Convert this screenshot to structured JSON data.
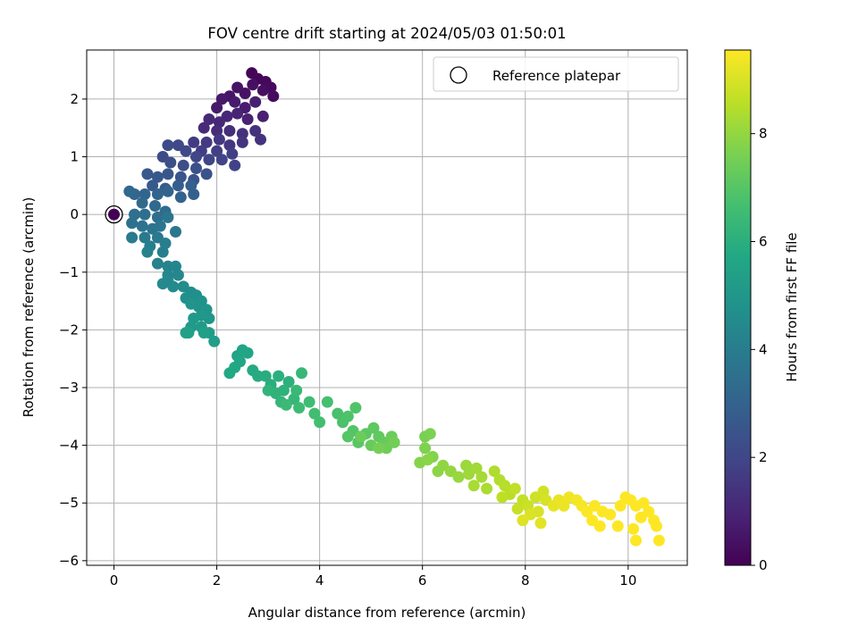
{
  "chart_data": {
    "type": "scatter",
    "title": "FOV centre drift starting at 2024/05/03 01:50:01",
    "xlabel": "Angular distance from reference (arcmin)",
    "ylabel": "Rotation from reference (arcmin)",
    "xlim": [
      -0.53,
      11.15
    ],
    "ylim": [
      -6.08,
      2.85
    ],
    "xticks": [
      0,
      2,
      4,
      6,
      8,
      10
    ],
    "yticks": [
      -6,
      -5,
      -4,
      -3,
      -2,
      -1,
      0,
      1,
      2
    ],
    "grid": true,
    "legend": {
      "placement": "top-right",
      "entries": [
        "Reference platepar"
      ]
    },
    "reference_point": {
      "x": 0,
      "y": 0
    },
    "colorbar": {
      "label": "Hours from first FF file",
      "range": [
        0,
        9.55
      ],
      "ticks": [
        0,
        2,
        4,
        6,
        8
      ],
      "colormap": "viridis"
    },
    "series": [
      {
        "values_note_fields": [
          "x",
          "y",
          "hours"
        ],
        "points": [
          [
            0.0,
            0.0,
            0.0
          ],
          [
            2.68,
            2.45,
            0.1
          ],
          [
            2.8,
            2.35,
            0.15
          ],
          [
            2.95,
            2.3,
            0.2
          ],
          [
            3.05,
            2.2,
            0.25
          ],
          [
            3.1,
            2.05,
            0.3
          ],
          [
            2.9,
            2.15,
            0.35
          ],
          [
            2.7,
            2.25,
            0.4
          ],
          [
            2.55,
            2.1,
            0.45
          ],
          [
            2.4,
            2.2,
            0.5
          ],
          [
            2.25,
            2.05,
            0.55
          ],
          [
            2.1,
            2.0,
            0.6
          ],
          [
            2.0,
            1.85,
            0.65
          ],
          [
            2.35,
            1.95,
            0.7
          ],
          [
            2.55,
            1.85,
            0.75
          ],
          [
            2.75,
            1.95,
            0.8
          ],
          [
            2.9,
            1.7,
            0.85
          ],
          [
            2.6,
            1.65,
            0.9
          ],
          [
            2.4,
            1.75,
            0.95
          ],
          [
            2.2,
            1.7,
            1.0
          ],
          [
            2.05,
            1.6,
            1.05
          ],
          [
            1.85,
            1.65,
            1.1
          ],
          [
            1.75,
            1.5,
            1.15
          ],
          [
            2.0,
            1.45,
            1.2
          ],
          [
            2.25,
            1.45,
            1.25
          ],
          [
            2.5,
            1.4,
            1.3
          ],
          [
            2.75,
            1.45,
            1.35
          ],
          [
            2.85,
            1.3,
            1.4
          ],
          [
            2.5,
            1.25,
            1.45
          ],
          [
            2.25,
            1.2,
            1.5
          ],
          [
            2.05,
            1.3,
            1.55
          ],
          [
            1.8,
            1.25,
            1.6
          ],
          [
            1.55,
            1.25,
            1.65
          ],
          [
            1.7,
            1.1,
            1.7
          ],
          [
            2.0,
            1.1,
            1.75
          ],
          [
            2.3,
            1.05,
            1.8
          ],
          [
            2.35,
            0.85,
            1.85
          ],
          [
            2.1,
            0.95,
            1.9
          ],
          [
            1.85,
            0.95,
            1.95
          ],
          [
            1.6,
            1.0,
            2.0
          ],
          [
            1.4,
            1.1,
            2.05
          ],
          [
            1.25,
            1.2,
            2.1
          ],
          [
            1.05,
            1.2,
            2.15
          ],
          [
            0.95,
            1.0,
            2.2
          ],
          [
            1.1,
            0.9,
            2.25
          ],
          [
            1.35,
            0.85,
            2.3
          ],
          [
            1.6,
            0.8,
            2.35
          ],
          [
            1.8,
            0.7,
            2.4
          ],
          [
            1.55,
            0.6,
            2.45
          ],
          [
            1.3,
            0.65,
            2.5
          ],
          [
            1.05,
            0.7,
            2.55
          ],
          [
            0.85,
            0.65,
            2.6
          ],
          [
            0.65,
            0.7,
            2.65
          ],
          [
            0.75,
            0.5,
            2.7
          ],
          [
            1.0,
            0.45,
            2.75
          ],
          [
            1.25,
            0.5,
            2.8
          ],
          [
            1.5,
            0.5,
            2.85
          ],
          [
            1.55,
            0.35,
            2.9
          ],
          [
            1.3,
            0.3,
            2.95
          ],
          [
            1.05,
            0.4,
            3.0
          ],
          [
            0.85,
            0.35,
            3.05
          ],
          [
            0.6,
            0.35,
            3.1
          ],
          [
            0.4,
            0.35,
            3.15
          ],
          [
            0.3,
            0.4,
            3.2
          ],
          [
            0.55,
            0.2,
            3.25
          ],
          [
            0.8,
            0.15,
            3.3
          ],
          [
            1.0,
            0.05,
            3.35
          ],
          [
            0.85,
            -0.05,
            3.4
          ],
          [
            0.6,
            0.0,
            3.45
          ],
          [
            0.4,
            0.0,
            3.5
          ],
          [
            0.35,
            -0.15,
            3.55
          ],
          [
            0.55,
            -0.2,
            3.6
          ],
          [
            0.75,
            -0.25,
            3.65
          ],
          [
            0.9,
            -0.2,
            3.7
          ],
          [
            1.05,
            -0.05,
            3.75
          ],
          [
            1.2,
            -0.3,
            3.8
          ],
          [
            0.85,
            -0.4,
            3.85
          ],
          [
            0.6,
            -0.4,
            3.9
          ],
          [
            0.35,
            -0.4,
            3.95
          ],
          [
            0.7,
            -0.55,
            4.0
          ],
          [
            1.0,
            -0.5,
            4.05
          ],
          [
            0.95,
            -0.65,
            4.1
          ],
          [
            0.65,
            -0.65,
            4.15
          ],
          [
            0.85,
            -0.85,
            4.2
          ],
          [
            1.05,
            -0.9,
            4.25
          ],
          [
            1.2,
            -0.9,
            4.3
          ],
          [
            1.05,
            -1.05,
            4.35
          ],
          [
            1.25,
            -1.05,
            4.4
          ],
          [
            1.05,
            -1.15,
            4.45
          ],
          [
            0.95,
            -1.2,
            4.5
          ],
          [
            1.15,
            -1.25,
            4.55
          ],
          [
            1.35,
            -1.25,
            4.6
          ],
          [
            1.5,
            -1.35,
            4.65
          ],
          [
            1.4,
            -1.45,
            4.7
          ],
          [
            1.6,
            -1.4,
            4.75
          ],
          [
            1.7,
            -1.5,
            4.8
          ],
          [
            1.65,
            -1.6,
            4.85
          ],
          [
            1.5,
            -1.55,
            4.9
          ],
          [
            1.8,
            -1.65,
            4.95
          ],
          [
            1.85,
            -1.8,
            5.0
          ],
          [
            1.7,
            -1.75,
            5.05
          ],
          [
            1.55,
            -1.8,
            5.1
          ],
          [
            1.5,
            -1.95,
            5.15
          ],
          [
            1.7,
            -1.95,
            5.2
          ],
          [
            1.85,
            -2.05,
            5.25
          ],
          [
            1.95,
            -2.2,
            5.3
          ],
          [
            1.75,
            -2.05,
            5.35
          ],
          [
            1.45,
            -2.05,
            5.4
          ],
          [
            1.4,
            -2.05,
            5.45
          ],
          [
            2.4,
            -2.45,
            5.5
          ],
          [
            2.5,
            -2.35,
            5.55
          ],
          [
            2.6,
            -2.4,
            5.6
          ],
          [
            2.45,
            -2.55,
            5.65
          ],
          [
            2.35,
            -2.65,
            5.7
          ],
          [
            2.25,
            -2.75,
            5.75
          ],
          [
            2.7,
            -2.7,
            5.8
          ],
          [
            2.8,
            -2.8,
            5.85
          ],
          [
            2.95,
            -2.8,
            5.9
          ],
          [
            3.05,
            -2.95,
            5.95
          ],
          [
            3.2,
            -2.8,
            6.0
          ],
          [
            3.4,
            -2.9,
            6.05
          ],
          [
            3.3,
            -3.05,
            6.1
          ],
          [
            3.15,
            -3.1,
            6.15
          ],
          [
            3.0,
            -3.05,
            6.2
          ],
          [
            3.25,
            -3.25,
            6.25
          ],
          [
            3.5,
            -3.2,
            6.3
          ],
          [
            3.65,
            -2.75,
            6.35
          ],
          [
            3.55,
            -3.05,
            6.4
          ],
          [
            3.35,
            -3.3,
            6.45
          ],
          [
            3.6,
            -3.35,
            6.5
          ],
          [
            3.8,
            -3.25,
            6.55
          ],
          [
            3.9,
            -3.45,
            6.6
          ],
          [
            4.0,
            -3.6,
            6.65
          ],
          [
            4.15,
            -3.25,
            6.7
          ],
          [
            4.35,
            -3.45,
            6.75
          ],
          [
            4.45,
            -3.6,
            6.8
          ],
          [
            4.55,
            -3.5,
            6.85
          ],
          [
            4.7,
            -3.35,
            6.9
          ],
          [
            4.65,
            -3.75,
            6.95
          ],
          [
            4.55,
            -3.85,
            7.0
          ],
          [
            4.75,
            -3.95,
            7.05
          ],
          [
            4.9,
            -3.8,
            7.1
          ],
          [
            5.05,
            -3.7,
            7.15
          ],
          [
            5.15,
            -3.85,
            7.2
          ],
          [
            5.25,
            -3.95,
            7.25
          ],
          [
            5.0,
            -4.0,
            7.3
          ],
          [
            4.8,
            -3.85,
            7.35
          ],
          [
            5.4,
            -3.85,
            7.4
          ],
          [
            5.3,
            -4.05,
            7.45
          ],
          [
            5.45,
            -3.95,
            7.5
          ],
          [
            5.15,
            -4.05,
            7.55
          ],
          [
            6.05,
            -3.85,
            7.6
          ],
          [
            6.15,
            -3.8,
            7.65
          ],
          [
            6.05,
            -4.05,
            7.7
          ],
          [
            6.2,
            -4.2,
            7.75
          ],
          [
            5.95,
            -4.3,
            7.8
          ],
          [
            6.1,
            -4.25,
            7.85
          ],
          [
            6.3,
            -4.45,
            7.9
          ],
          [
            6.4,
            -4.35,
            7.95
          ],
          [
            6.55,
            -4.45,
            8.0
          ],
          [
            6.7,
            -4.55,
            8.05
          ],
          [
            6.85,
            -4.35,
            8.1
          ],
          [
            6.9,
            -4.5,
            8.15
          ],
          [
            7.05,
            -4.4,
            8.2
          ],
          [
            7.15,
            -4.55,
            8.25
          ],
          [
            7.0,
            -4.7,
            8.3
          ],
          [
            7.25,
            -4.75,
            8.35
          ],
          [
            7.4,
            -4.45,
            8.4
          ],
          [
            7.5,
            -4.6,
            8.45
          ],
          [
            7.6,
            -4.7,
            8.5
          ],
          [
            7.7,
            -4.85,
            8.55
          ],
          [
            7.55,
            -4.9,
            8.6
          ],
          [
            7.8,
            -4.75,
            8.65
          ],
          [
            7.95,
            -4.95,
            8.7
          ],
          [
            7.85,
            -5.1,
            8.75
          ],
          [
            8.05,
            -5.05,
            8.8
          ],
          [
            8.2,
            -4.9,
            8.85
          ],
          [
            8.35,
            -4.8,
            8.9
          ],
          [
            8.4,
            -4.95,
            8.95
          ],
          [
            8.25,
            -5.15,
            9.0
          ],
          [
            8.1,
            -5.2,
            9.05
          ],
          [
            7.95,
            -5.3,
            9.1
          ],
          [
            8.3,
            -5.35,
            9.15
          ],
          [
            8.55,
            -5.05,
            9.2
          ],
          [
            8.65,
            -4.95,
            9.25
          ],
          [
            8.75,
            -5.05,
            9.3
          ],
          [
            8.85,
            -4.9,
            9.35
          ],
          [
            9.0,
            -4.95,
            9.4
          ],
          [
            9.1,
            -5.05,
            9.45
          ],
          [
            9.2,
            -5.15,
            9.5
          ],
          [
            9.35,
            -5.05,
            9.52
          ],
          [
            9.5,
            -5.15,
            9.54
          ],
          [
            9.65,
            -5.2,
            9.55
          ],
          [
            9.3,
            -5.3,
            9.55
          ],
          [
            9.45,
            -5.4,
            9.55
          ],
          [
            9.85,
            -5.05,
            9.55
          ],
          [
            9.95,
            -4.9,
            9.55
          ],
          [
            10.05,
            -4.95,
            9.55
          ],
          [
            10.15,
            -5.05,
            9.55
          ],
          [
            10.3,
            -5.0,
            9.55
          ],
          [
            10.4,
            -5.15,
            9.55
          ],
          [
            10.25,
            -5.25,
            9.55
          ],
          [
            10.5,
            -5.3,
            9.55
          ],
          [
            10.55,
            -5.4,
            9.55
          ],
          [
            10.1,
            -5.45,
            9.55
          ],
          [
            9.8,
            -5.4,
            9.55
          ],
          [
            10.6,
            -5.65,
            9.55
          ],
          [
            10.15,
            -5.65,
            9.55
          ]
        ]
      }
    ]
  }
}
